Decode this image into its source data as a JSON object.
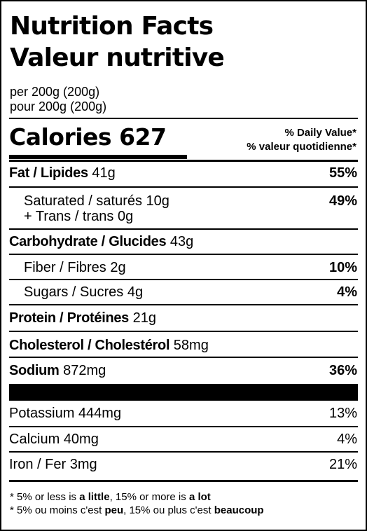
{
  "title_en": "Nutrition Facts",
  "title_fr": "Valeur nutritive",
  "serving_en": "per 200g (200g)",
  "serving_fr": "pour 200g (200g)",
  "calories_label": "Calories",
  "calories_value": "627",
  "daily_value_en": "% Daily Value*",
  "daily_value_fr": "% valeur quotidienne*",
  "fat": {
    "label": "Fat / Lipides",
    "amount": "41g",
    "dv": "55%"
  },
  "saturated": {
    "label": "Saturated / saturés",
    "amount": "10g",
    "dv": "49%"
  },
  "trans": {
    "label": "+ Trans / trans",
    "amount": "0g"
  },
  "carbohydrate": {
    "label": "Carbohydrate / Glucides",
    "amount": "43g"
  },
  "fiber": {
    "label": "Fiber / Fibres",
    "amount": "2g",
    "dv": "10%"
  },
  "sugars": {
    "label": "Sugars / Sucres",
    "amount": "4g",
    "dv": "4%"
  },
  "protein": {
    "label": "Protein / Protéines",
    "amount": "21g"
  },
  "cholesterol": {
    "label": "Cholesterol / Cholestérol",
    "amount": "58mg"
  },
  "sodium": {
    "label": "Sodium",
    "amount": "872mg",
    "dv": "36%"
  },
  "potassium": {
    "label": "Potassium",
    "amount": "444mg",
    "dv": "13%"
  },
  "calcium": {
    "label": "Calcium",
    "amount": "40mg",
    "dv": "4%"
  },
  "iron": {
    "label": "Iron / Fer",
    "amount": "3mg",
    "dv": "21%"
  },
  "footnote_en": {
    "prefix": "* 5% or less is ",
    "little": "a little",
    "middle": ", 15% or more is ",
    "lot": "a lot"
  },
  "footnote_fr": {
    "prefix": "* 5% ou moins c'est ",
    "peu": "peu",
    "middle": ", 15% ou plus c'est ",
    "beaucoup": "beaucoup"
  }
}
